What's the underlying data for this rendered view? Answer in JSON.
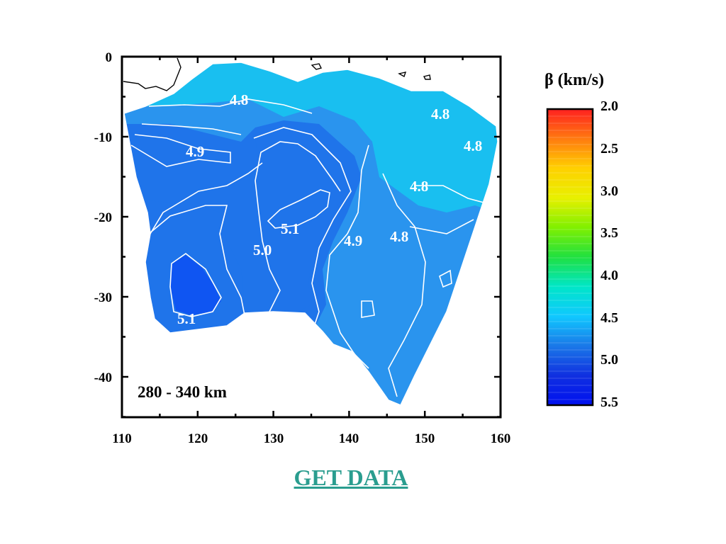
{
  "map": {
    "depth_label": "280 - 340 km",
    "x_ticks": [
      "110",
      "120",
      "130",
      "140",
      "150",
      "160"
    ],
    "y_ticks": [
      "0",
      "-10",
      "-20",
      "-30",
      "-40"
    ],
    "contour_labels": {
      "c1": "4.8",
      "c2": "4.8",
      "c3": "4.8",
      "c4": "4.8",
      "c5": "4.8",
      "c6": "4.9",
      "c7": "4.9",
      "c8": "5.1",
      "c9": "5.0",
      "c10": "5.1"
    },
    "colors": {
      "deep": "#0f55f2",
      "mid": "#1f74ea",
      "light": "#2a94ee",
      "pale": "#19bff0",
      "contour": "#ffffff"
    }
  },
  "colorbar": {
    "title": "β (km/s)",
    "ticks": [
      "2.0",
      "2.5",
      "3.0",
      "3.5",
      "4.0",
      "4.5",
      "5.0",
      "5.5"
    ],
    "stops": [
      "#ff2020",
      "#ff7a10",
      "#ffd000",
      "#e8f000",
      "#80f000",
      "#20e040",
      "#00e6c8",
      "#10c8ff",
      "#1a78e8",
      "#1030e0",
      "#0010f0"
    ]
  },
  "link": {
    "label": "GET DATA"
  }
}
